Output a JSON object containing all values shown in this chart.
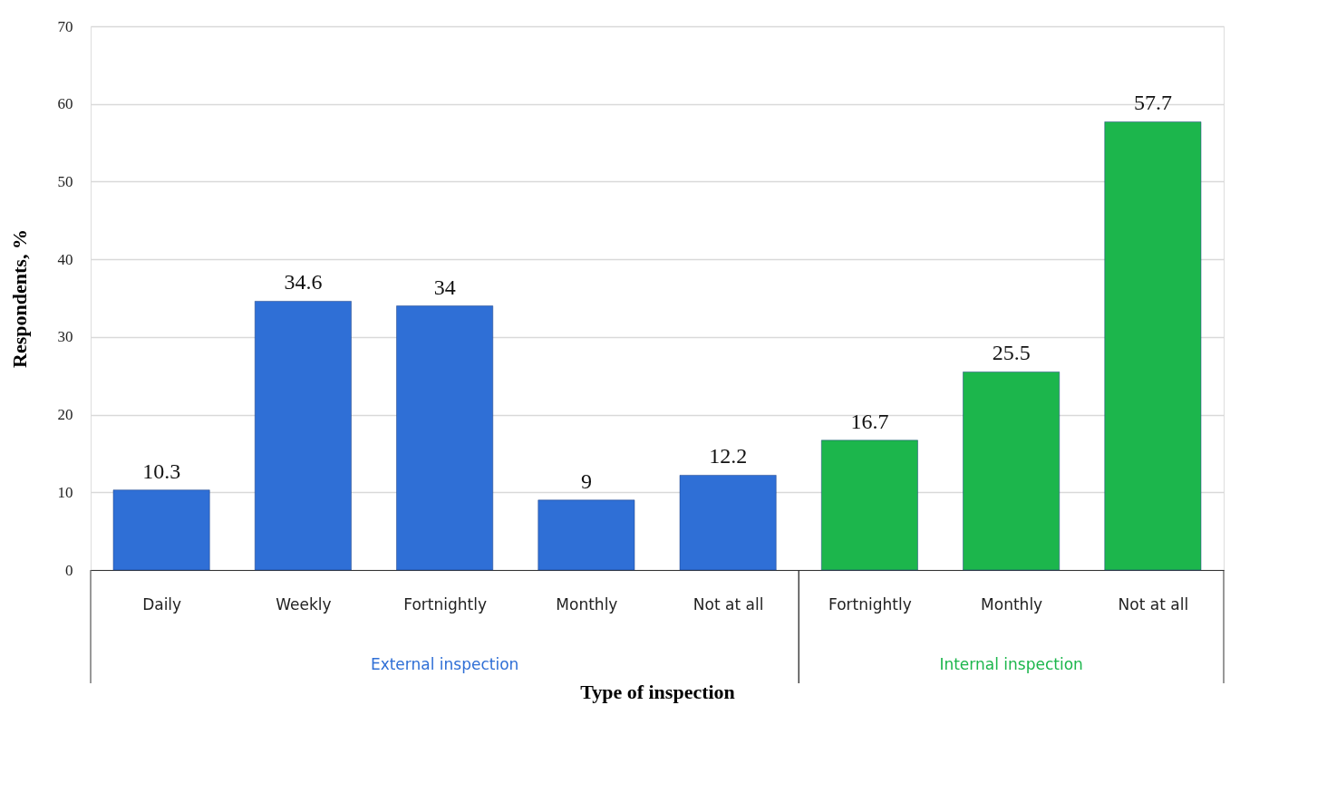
{
  "chart_data": {
    "type": "bar",
    "xlabel": "Type of inspection",
    "ylabel": "Respondents, %",
    "categories": [
      "Daily",
      "Weekly",
      "Fortnightly",
      "Monthly",
      "Not at all",
      "Fortnightly",
      "Monthly",
      "Not at all"
    ],
    "series": [
      {
        "name": "External inspection",
        "color": "#2f6fd6",
        "values": [
          10.3,
          34.6,
          34,
          9,
          12.2,
          null,
          null,
          null
        ]
      },
      {
        "name": "Internal inspection",
        "color": "#1cb64c",
        "values": [
          null,
          null,
          null,
          null,
          null,
          16.7,
          25.5,
          57.7
        ]
      }
    ],
    "ylim": [
      0,
      70
    ],
    "yticks": [
      0,
      10,
      20,
      30,
      40,
      50,
      60,
      70
    ],
    "grid": "y",
    "data_labels": true
  }
}
